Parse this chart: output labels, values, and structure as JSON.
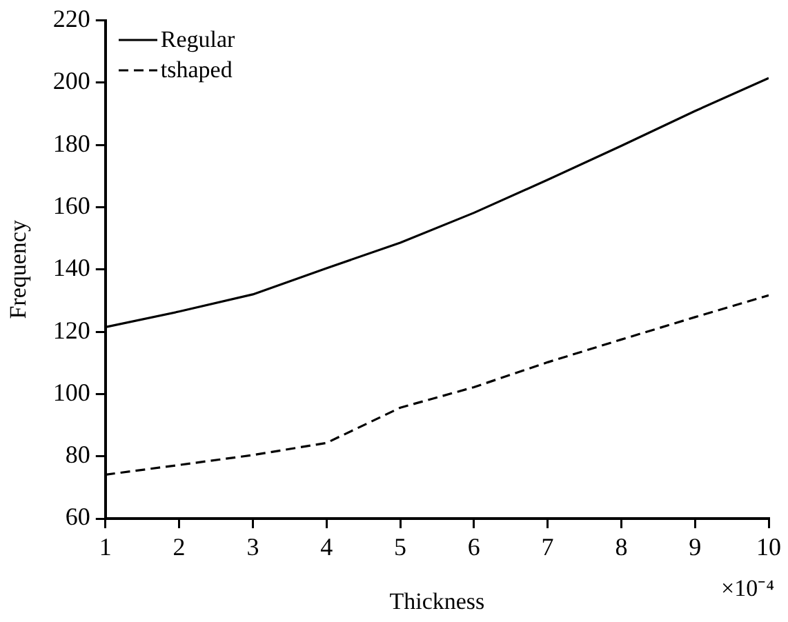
{
  "chart_data": {
    "type": "line",
    "xlabel": "Thickness",
    "ylabel": "Frequency",
    "annotations": [
      "×10⁻⁴"
    ],
    "x": [
      1,
      2,
      3,
      4,
      5,
      6,
      7,
      8,
      9,
      10
    ],
    "series": [
      {
        "name": "Regular",
        "color": "#000000",
        "line_style": "solid",
        "values": [
          121.5,
          126.5,
          132,
          140.4,
          148.6,
          158.2,
          168.8,
          179.7,
          190.9,
          201.5
        ]
      },
      {
        "name": "tshaped",
        "color": "#000000",
        "line_style": "dashed",
        "values": [
          74.1,
          77.2,
          80.4,
          84.3,
          95.6,
          102.2,
          110.2,
          117.5,
          124.7,
          131.7
        ]
      }
    ],
    "xlim": [
      1,
      10
    ],
    "xticks": [
      1,
      2,
      3,
      4,
      5,
      6,
      7,
      8,
      9,
      10
    ],
    "ylim": [
      60,
      220
    ],
    "yticks": [
      60,
      80,
      100,
      120,
      140,
      160,
      180,
      200,
      220
    ],
    "grid": false,
    "legend": "top left",
    "marker": "none"
  }
}
